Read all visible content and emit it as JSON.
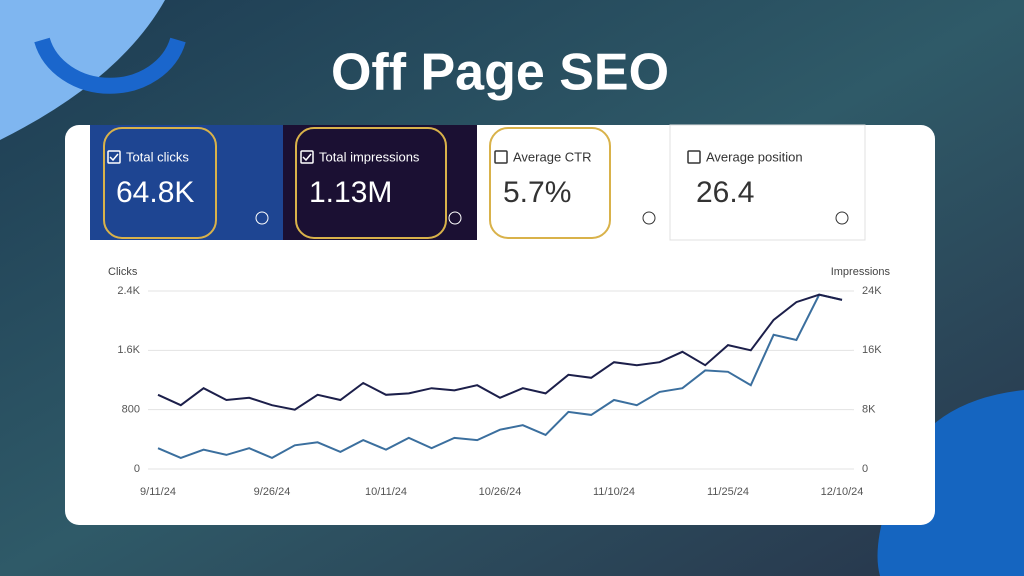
{
  "header": {
    "title": "Off Page SEO"
  },
  "cards": [
    {
      "label": "Total clicks",
      "value": "64.8K"
    },
    {
      "label": "Total impressions",
      "value": "1.13M"
    },
    {
      "label": "Average CTR",
      "value": "5.7%"
    },
    {
      "label": "Average position",
      "value": "26.4"
    }
  ],
  "chart_data": {
    "type": "line",
    "y_label": "Clicks",
    "y2_label": "Impressions",
    "categories": [
      "9/11/24",
      null,
      null,
      null,
      null,
      "9/26/24",
      null,
      null,
      null,
      null,
      "10/11/24",
      null,
      null,
      null,
      null,
      "10/26/24",
      null,
      null,
      null,
      null,
      "11/10/24",
      null,
      null,
      null,
      null,
      "11/25/24",
      null,
      null,
      null,
      null,
      "12/10/24"
    ],
    "series": [
      {
        "color": "#3b6f9e",
        "axis": "y",
        "values": [
          280,
          150,
          260,
          190,
          280,
          150,
          320,
          360,
          230,
          390,
          260,
          420,
          280,
          420,
          390,
          530,
          590,
          460,
          770,
          730,
          930,
          860,
          1040,
          1090,
          1330,
          1310,
          1130,
          1810,
          1740,
          2350,
          2280
        ]
      },
      {
        "color": "#1c1f4a",
        "axis": "y2",
        "values": [
          10000,
          8600,
          10900,
          9300,
          9600,
          8600,
          8000,
          10000,
          9300,
          11600,
          10000,
          10200,
          10900,
          10600,
          11300,
          9600,
          10900,
          10200,
          12700,
          12300,
          14400,
          14000,
          14400,
          15800,
          14000,
          16700,
          16000,
          20100,
          22500,
          23500,
          22800
        ]
      }
    ],
    "ylim": [
      0,
      2400
    ],
    "yticks": [
      0,
      800,
      {
        "value": 1600,
        "label": "1.6K"
      },
      {
        "value": 2400,
        "label": "2.4K"
      }
    ],
    "y2lim": [
      0,
      24000
    ],
    "y2ticks": [
      0,
      {
        "value": 8000,
        "label": "8K"
      },
      {
        "value": 16000,
        "label": "16K"
      },
      {
        "value": 24000,
        "label": "24K"
      }
    ],
    "grid": true
  }
}
